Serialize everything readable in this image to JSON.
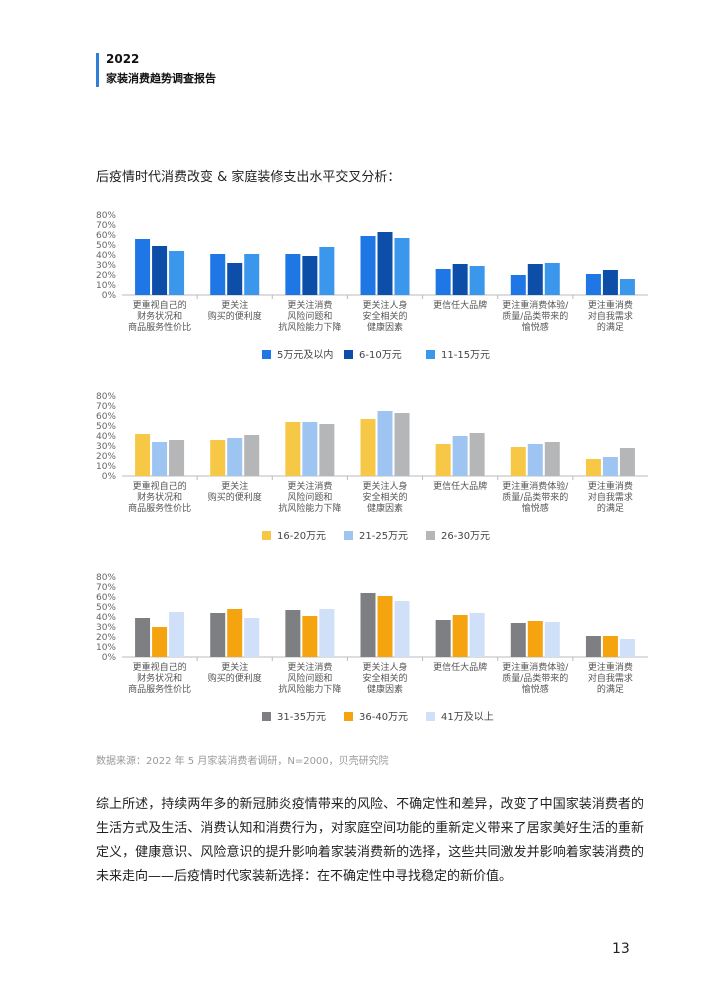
{
  "header": {
    "year": "2022",
    "title": "家装消费趋势调查报告"
  },
  "section_heading": "后疫情时代消费改变 & 家庭装修支出水平交叉分析：",
  "chart_data": [
    {
      "type": "bar",
      "categories": [
        [
          "更重视自己的",
          "财务状况和",
          "商品服务性价比"
        ],
        [
          "更关注",
          "购买的便利度"
        ],
        [
          "更关注消费",
          "风险问题和",
          "抗风险能力下降"
        ],
        [
          "更关注人身",
          "安全相关的",
          "健康因素"
        ],
        [
          "更信任大品牌"
        ],
        [
          "更注重消费体验/",
          "质量/品类带来的",
          "愉悦感"
        ],
        [
          "更注重消费",
          "对自我需求",
          "的满足"
        ]
      ],
      "yticks": [
        "80%",
        "70%",
        "60%",
        "50%",
        "40%",
        "30%",
        "20%",
        "10%",
        "0%"
      ],
      "ylim": [
        0,
        80
      ],
      "series": [
        {
          "name": "5万元及以内",
          "color": "#1f77e6",
          "values": [
            56,
            41,
            41,
            59,
            26,
            20,
            21
          ]
        },
        {
          "name": "6-10万元",
          "color": "#0d4fa8",
          "values": [
            49,
            32,
            39,
            63,
            31,
            31,
            25
          ]
        },
        {
          "name": "11-15万元",
          "color": "#3a97ec",
          "values": [
            44,
            41,
            48,
            57,
            29,
            32,
            16
          ]
        }
      ]
    },
    {
      "type": "bar",
      "categories": [
        [
          "更重视自己的",
          "财务状况和",
          "商品服务性价比"
        ],
        [
          "更关注",
          "购买的便利度"
        ],
        [
          "更关注消费",
          "风险问题和",
          "抗风险能力下降"
        ],
        [
          "更关注人身",
          "安全相关的",
          "健康因素"
        ],
        [
          "更信任大品牌"
        ],
        [
          "更注重消费体验/",
          "质量/品类带来的",
          "愉悦感"
        ],
        [
          "更注重消费",
          "对自我需求",
          "的满足"
        ]
      ],
      "yticks": [
        "80%",
        "70%",
        "60%",
        "50%",
        "40%",
        "30%",
        "20%",
        "10%",
        "0%"
      ],
      "ylim": [
        0,
        80
      ],
      "series": [
        {
          "name": "16-20万元",
          "color": "#f7c746",
          "values": [
            42,
            36,
            54,
            57,
            32,
            29,
            17
          ]
        },
        {
          "name": "21-25万元",
          "color": "#9ec5f2",
          "values": [
            34,
            38,
            54,
            65,
            40,
            32,
            19
          ]
        },
        {
          "name": "26-30万元",
          "color": "#b4b6b8",
          "values": [
            36,
            41,
            52,
            63,
            43,
            34,
            28
          ]
        }
      ]
    },
    {
      "type": "bar",
      "categories": [
        [
          "更重视自己的",
          "财务状况和",
          "商品服务性价比"
        ],
        [
          "更关注",
          "购买的便利度"
        ],
        [
          "更关注消费",
          "风险问题和",
          "抗风险能力下降"
        ],
        [
          "更关注人身",
          "安全相关的",
          "健康因素"
        ],
        [
          "更信任大品牌"
        ],
        [
          "更注重消费体验/",
          "质量/品类带来的",
          "愉悦感"
        ],
        [
          "更注重消费",
          "对自我需求",
          "的满足"
        ]
      ],
      "yticks": [
        "80%",
        "70%",
        "60%",
        "50%",
        "40%",
        "30%",
        "20%",
        "10%",
        "0%"
      ],
      "ylim": [
        0,
        80
      ],
      "series": [
        {
          "name": "31-35万元",
          "color": "#7d7f82",
          "values": [
            39,
            44,
            47,
            64,
            37,
            34,
            21
          ]
        },
        {
          "name": "36-40万元",
          "color": "#f5a30f",
          "values": [
            30,
            48,
            41,
            61,
            42,
            36,
            21
          ]
        },
        {
          "name": "41万及以上",
          "color": "#cfe0f8",
          "values": [
            45,
            39,
            48,
            56,
            44,
            35,
            18
          ]
        }
      ]
    }
  ],
  "source": "数据来源：2022 年 5 月家装消费者调研，N=2000，贝壳研究院",
  "paragraph": "综上所述，持续两年多的新冠肺炎疫情带来的风险、不确定性和差异，改变了中国家装消费者的生活方式及生活、消费认知和消费行为，对家庭空间功能的重新定义带来了居家美好生活的重新定义，健康意识、风险意识的提升影响着家装消费新的选择，这些共同激发并影响着家装消费的未来走向——后疫情时代家装新选择：在不确定性中寻找稳定的新价值。",
  "page_number": "13"
}
